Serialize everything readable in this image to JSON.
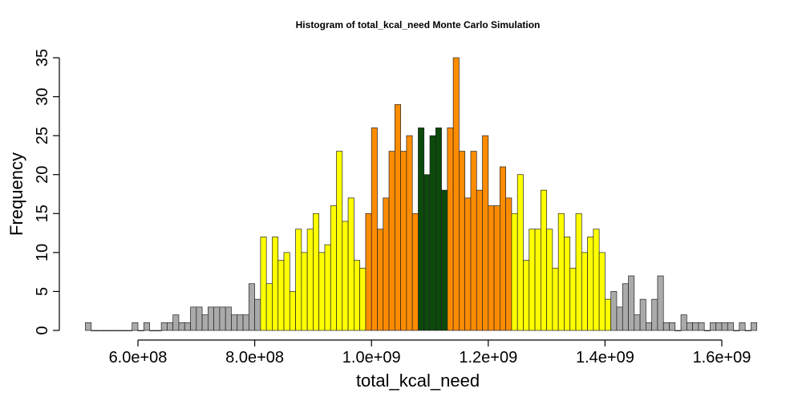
{
  "chart_data": {
    "type": "bar",
    "title": "Histogram of  total_kcal_need  Monte Carlo Simulation",
    "xlabel": "total_kcal_need",
    "ylabel": "Frequency",
    "xlim": [
      510000000,
      1650000000
    ],
    "ylim": [
      0,
      35
    ],
    "x_ticks": [
      600000000,
      800000000,
      1000000000,
      1200000000,
      1400000000,
      1600000000
    ],
    "x_tick_labels": [
      "6.0e+08",
      "8.0e+08",
      "1.0e+09",
      "1.2e+09",
      "1.4e+09",
      "1.6e+09"
    ],
    "y_ticks": [
      0,
      5,
      10,
      15,
      20,
      25,
      30,
      35
    ],
    "y_tick_labels": [
      "0",
      "5",
      "10",
      "15",
      "20",
      "25",
      "30",
      "35"
    ],
    "grid": false,
    "bin_start": 510000000,
    "bin_width": 10000000,
    "colors": {
      "outer": "#aaaaaa",
      "middle": "#ffff00",
      "inner": "#ff8c00",
      "center": "#0b4a0b",
      "border": "#222222"
    },
    "values": [
      1,
      0,
      0,
      0,
      0,
      0,
      0,
      0,
      1,
      0,
      1,
      0,
      0,
      1,
      1,
      2,
      1,
      1,
      3,
      3,
      2,
      3,
      3,
      3,
      3,
      2,
      2,
      2,
      6,
      4,
      12,
      6,
      12,
      9,
      10,
      5,
      13,
      10,
      13,
      15,
      10,
      11,
      16,
      23,
      14,
      17,
      9,
      8,
      15,
      26,
      13,
      17,
      23,
      29,
      23,
      25,
      15,
      26,
      20,
      25,
      26,
      18,
      26,
      35,
      23,
      17,
      23,
      18,
      25,
      16,
      16,
      21,
      17,
      15,
      20,
      9,
      13,
      13,
      18,
      13,
      8,
      15,
      12,
      8,
      15,
      10,
      12,
      13,
      10,
      4,
      5,
      3,
      6,
      7,
      2,
      4,
      1,
      4,
      7,
      1,
      1,
      0,
      2,
      1,
      1,
      1,
      0,
      1,
      1,
      1,
      1,
      0,
      1,
      0,
      1
    ],
    "color_groups": [
      "outer",
      "outer",
      "outer",
      "outer",
      "outer",
      "outer",
      "outer",
      "outer",
      "outer",
      "outer",
      "outer",
      "outer",
      "outer",
      "outer",
      "outer",
      "outer",
      "outer",
      "outer",
      "outer",
      "outer",
      "outer",
      "outer",
      "outer",
      "outer",
      "outer",
      "outer",
      "outer",
      "outer",
      "outer",
      "outer",
      "middle",
      "middle",
      "middle",
      "middle",
      "middle",
      "middle",
      "middle",
      "middle",
      "middle",
      "middle",
      "middle",
      "middle",
      "middle",
      "middle",
      "middle",
      "middle",
      "middle",
      "middle",
      "inner",
      "inner",
      "inner",
      "inner",
      "inner",
      "inner",
      "inner",
      "inner",
      "inner",
      "center",
      "center",
      "center",
      "center",
      "center",
      "inner",
      "inner",
      "inner",
      "inner",
      "inner",
      "inner",
      "inner",
      "inner",
      "inner",
      "inner",
      "inner",
      "middle",
      "middle",
      "middle",
      "middle",
      "middle",
      "middle",
      "middle",
      "middle",
      "middle",
      "middle",
      "middle",
      "middle",
      "middle",
      "middle",
      "middle",
      "middle",
      "middle",
      "outer",
      "outer",
      "outer",
      "outer",
      "outer",
      "outer",
      "outer",
      "outer",
      "outer",
      "outer",
      "outer",
      "outer",
      "outer",
      "outer",
      "outer",
      "outer",
      "outer",
      "outer",
      "outer",
      "outer",
      "outer",
      "outer",
      "outer",
      "outer",
      "outer"
    ]
  }
}
